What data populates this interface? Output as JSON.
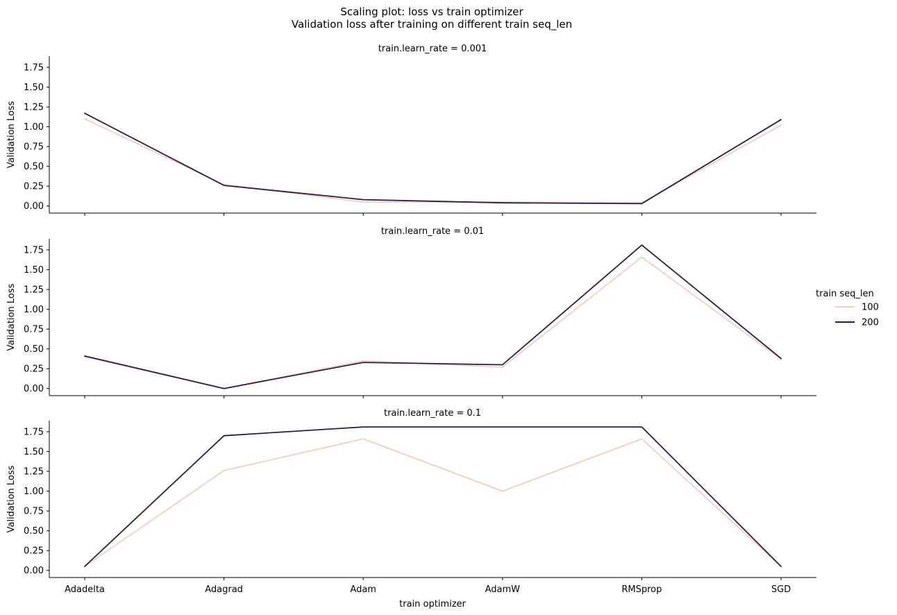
{
  "chart_data": {
    "type": "line",
    "title": "Scaling plot: loss vs train optimizer",
    "subtitle": "Validation loss after training on different train seq_len",
    "xlabel": "train optimizer",
    "ylabel": "Validation Loss",
    "categories": [
      "Adadelta",
      "Adagrad",
      "Adam",
      "AdamW",
      "RMSprop",
      "SGD"
    ],
    "ylim": [
      -0.09,
      1.89
    ],
    "yticks": [
      "0.00",
      "0.25",
      "0.50",
      "0.75",
      "1.00",
      "1.25",
      "1.50",
      "1.75"
    ],
    "grid": false,
    "legend": {
      "title": "train seq_len",
      "placement": "right",
      "entries": [
        {
          "label": "100",
          "color": "#efcec7"
        },
        {
          "label": "200",
          "color": "#2d1e3e"
        }
      ]
    },
    "panels": [
      {
        "title": "train.learn_rate = 0.001",
        "series": [
          {
            "name": "100",
            "color": "#efcec7",
            "values": [
              1.1,
              0.27,
              0.05,
              0.05,
              0.04,
              1.02
            ]
          },
          {
            "name": "200",
            "color": "#2d1e3e",
            "values": [
              1.17,
              0.26,
              0.08,
              0.04,
              0.03,
              1.09
            ]
          }
        ]
      },
      {
        "title": "train.learn_rate = 0.01",
        "series": [
          {
            "name": "100",
            "color": "#efcec7",
            "values": [
              0.4,
              0.0,
              0.35,
              0.27,
              1.66,
              0.37
            ]
          },
          {
            "name": "200",
            "color": "#2d1e3e",
            "values": [
              0.41,
              0.0,
              0.33,
              0.3,
              1.81,
              0.38
            ]
          }
        ]
      },
      {
        "title": "train.learn_rate = 0.1",
        "series": [
          {
            "name": "100",
            "color": "#efcec7",
            "values": [
              0.05,
              1.26,
              1.66,
              1.0,
              1.66,
              0.05
            ]
          },
          {
            "name": "200",
            "color": "#2d1e3e",
            "values": [
              0.05,
              1.7,
              1.81,
              1.81,
              1.81,
              0.05
            ]
          }
        ]
      }
    ]
  }
}
